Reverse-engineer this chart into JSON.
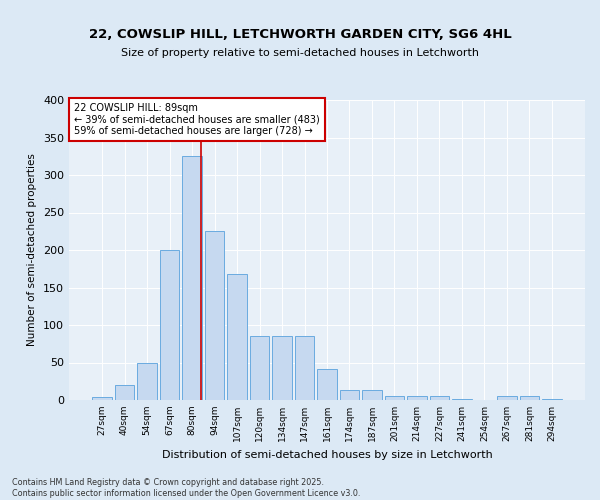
{
  "title_line1": "22, COWSLIP HILL, LETCHWORTH GARDEN CITY, SG6 4HL",
  "title_line2": "Size of property relative to semi-detached houses in Letchworth",
  "xlabel": "Distribution of semi-detached houses by size in Letchworth",
  "ylabel": "Number of semi-detached properties",
  "categories": [
    "27sqm",
    "40sqm",
    "54sqm",
    "67sqm",
    "80sqm",
    "94sqm",
    "107sqm",
    "120sqm",
    "134sqm",
    "147sqm",
    "161sqm",
    "174sqm",
    "187sqm",
    "201sqm",
    "214sqm",
    "227sqm",
    "241sqm",
    "254sqm",
    "267sqm",
    "281sqm",
    "294sqm"
  ],
  "values": [
    4,
    20,
    50,
    200,
    325,
    225,
    168,
    85,
    85,
    85,
    42,
    14,
    14,
    5,
    5,
    5,
    2,
    0,
    5,
    5,
    2
  ],
  "bar_color": "#c6d9f0",
  "bar_edge_color": "#6aabe0",
  "vline_pos": 4.42,
  "annotation_text": "22 COWSLIP HILL: 89sqm\n← 39% of semi-detached houses are smaller (483)\n59% of semi-detached houses are larger (728) →",
  "vline_color": "#cc0000",
  "footer_line1": "Contains HM Land Registry data © Crown copyright and database right 2025.",
  "footer_line2": "Contains public sector information licensed under the Open Government Licence v3.0.",
  "bg_color": "#dce9f5",
  "plot_bg_color": "#e8f0f8",
  "ylim": [
    0,
    400
  ],
  "yticks": [
    0,
    50,
    100,
    150,
    200,
    250,
    300,
    350,
    400
  ]
}
